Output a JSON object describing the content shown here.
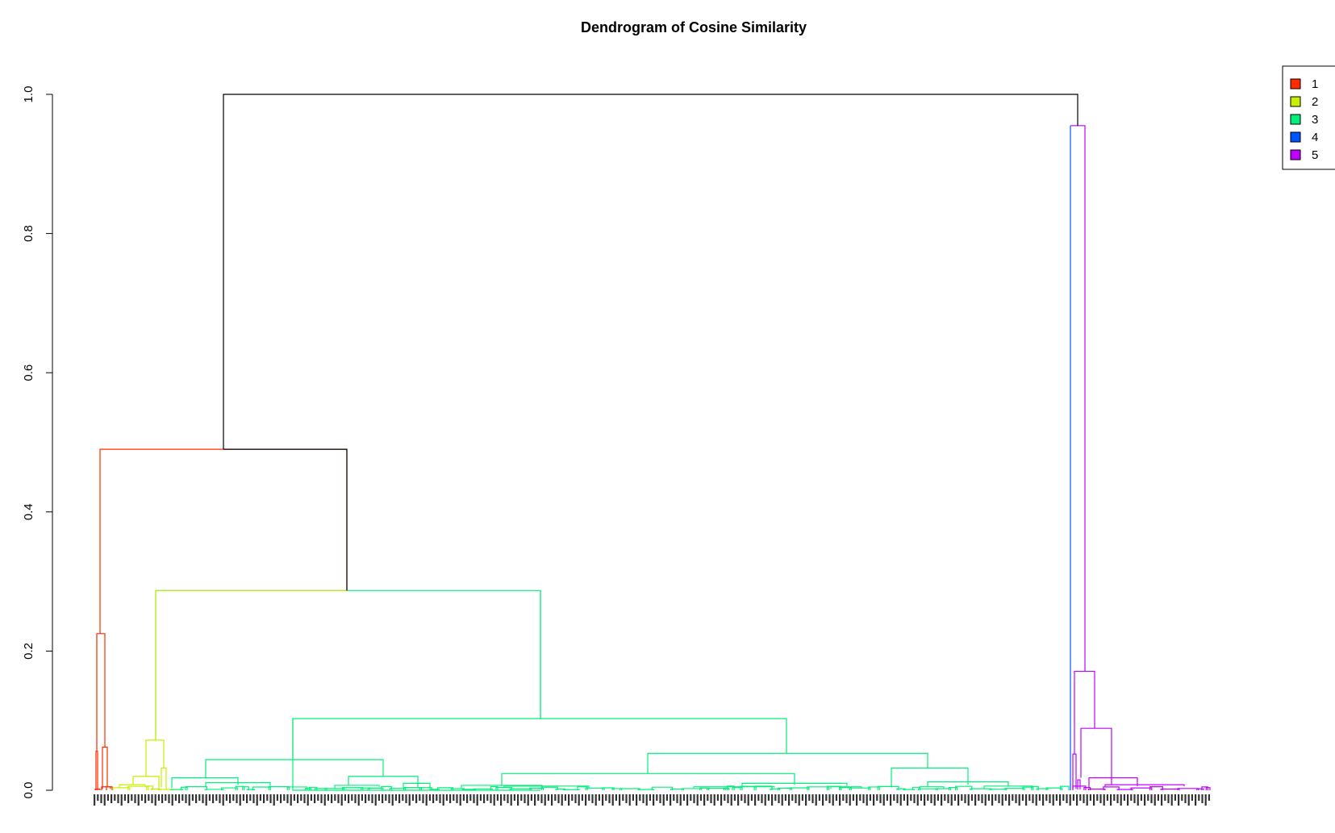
{
  "chart_data": {
    "type": "dendrogram",
    "title": "Dendrogram of Cosine Similarity",
    "xlabel": "",
    "ylabel": "",
    "ylim": [
      0,
      1.0
    ],
    "y_ticks": [
      "0.0",
      "0.2",
      "0.4",
      "0.6",
      "0.8",
      "1.0"
    ],
    "y_tick_values": [
      0,
      0.2,
      0.4,
      0.6,
      0.8,
      1.0
    ],
    "legend": [
      {
        "label": "1",
        "color": "#ff2a00"
      },
      {
        "label": "2",
        "color": "#c7f000"
      },
      {
        "label": "3",
        "color": "#00f07a"
      },
      {
        "label": "4",
        "color": "#0055ff"
      },
      {
        "label": "5",
        "color": "#c000ff"
      }
    ],
    "legend_placement": "top-right",
    "clusters": [
      {
        "id": "1",
        "color": "#ff2a00",
        "merge_heights": [
          0.225,
          0.062,
          0.056,
          0.005,
          0.002
        ]
      },
      {
        "id": "2",
        "color": "#c7f000",
        "merge_heights": [
          0.072,
          0.02,
          0.032,
          0.006,
          0.003
        ]
      },
      {
        "id": "3",
        "color": "#00f07a",
        "merge_heights": [
          0.287,
          0.103,
          0.053,
          0.044,
          0.032,
          0.024,
          0.02,
          0.018,
          0.012,
          0.01,
          0.008,
          0.006,
          0.004,
          0.002
        ]
      },
      {
        "id": "4",
        "color": "#0055ff",
        "merge_heights": []
      },
      {
        "id": "5",
        "color": "#c000ff",
        "merge_heights": [
          0.171,
          0.089,
          0.018,
          0.015,
          0.006,
          0.004,
          0.002
        ]
      }
    ],
    "top_merges": [
      {
        "height": 1.0,
        "left": "1+2+3",
        "right": "4+5",
        "color": "#000000"
      },
      {
        "height": 0.955,
        "left": "4",
        "right": "5",
        "color": "#c000ff"
      },
      {
        "height": 0.49,
        "left": "1",
        "right": "2+3",
        "color": "#000000"
      },
      {
        "height": 0.287,
        "left": "2",
        "right": "3",
        "color": "#000000"
      }
    ],
    "axis_color": "#000000",
    "grid": false
  }
}
